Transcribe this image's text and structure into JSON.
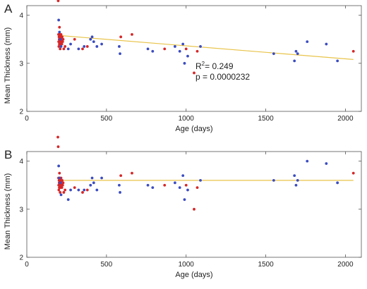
{
  "chart_data": [
    {
      "type": "scatter",
      "panel_label": "A",
      "xlabel": "Age (days)",
      "ylabel": "Mean Thickness (mm)",
      "xlim": [
        0,
        2100
      ],
      "ylim": [
        2,
        4.2
      ],
      "xticks": [
        0,
        500,
        1000,
        1500,
        2000
      ],
      "yticks": [
        2,
        3,
        4
      ],
      "grid": false,
      "legend": "none",
      "annotation": {
        "r2_label": "R",
        "r2_sup": "2",
        "r2_value": "= 0.249",
        "p_text": "p = 0.0000232"
      },
      "trendline": {
        "x": [
          200,
          2050
        ],
        "y": [
          3.58,
          3.08
        ],
        "color": "#e8c44a"
      },
      "series": [
        {
          "color": "#d62728",
          "x": [
            195,
            197,
            199,
            200,
            201,
            202,
            203,
            204,
            205,
            206,
            207,
            208,
            209,
            210,
            211,
            212,
            214,
            215,
            216,
            218,
            220,
            222,
            225,
            228,
            232,
            240,
            300,
            350,
            380,
            590,
            660,
            865,
            1000,
            1050,
            1070,
            2050
          ],
          "y": [
            4.45,
            4.3,
            3.6,
            3.45,
            3.35,
            3.55,
            3.5,
            3.4,
            3.75,
            3.5,
            3.6,
            3.45,
            3.3,
            3.55,
            3.4,
            3.5,
            3.55,
            3.6,
            3.45,
            3.5,
            3.4,
            3.55,
            3.45,
            3.5,
            3.3,
            3.35,
            3.5,
            3.3,
            3.35,
            3.55,
            3.6,
            3.3,
            3.3,
            2.8,
            3.25,
            3.25
          ]
        },
        {
          "color": "#3b4cc0",
          "x": [
            200,
            205,
            210,
            215,
            260,
            275,
            325,
            360,
            400,
            410,
            420,
            440,
            470,
            580,
            585,
            760,
            790,
            930,
            960,
            980,
            990,
            1010,
            1090,
            1550,
            1680,
            1690,
            1700,
            1760,
            1880,
            1950
          ],
          "y": [
            3.9,
            3.65,
            3.5,
            3.35,
            3.3,
            3.4,
            3.3,
            3.35,
            3.5,
            3.55,
            3.45,
            3.35,
            3.4,
            3.35,
            3.2,
            3.3,
            3.25,
            3.35,
            3.25,
            3.4,
            3.0,
            3.15,
            3.35,
            3.2,
            3.05,
            3.25,
            3.2,
            3.45,
            3.4,
            3.05
          ]
        }
      ]
    },
    {
      "type": "scatter",
      "panel_label": "B",
      "xlabel": "Age (days)",
      "ylabel": "Mean Thickness (mm)",
      "xlim": [
        0,
        2100
      ],
      "ylim": [
        2,
        4.2
      ],
      "xticks": [
        0,
        500,
        1000,
        1500,
        2000
      ],
      "yticks": [
        2,
        3,
        4
      ],
      "grid": false,
      "legend": "none",
      "trendline": {
        "x": [
          200,
          2050
        ],
        "y": [
          3.6,
          3.6
        ],
        "color": "#e8c44a"
      },
      "series": [
        {
          "color": "#d62728",
          "x": [
            195,
            197,
            199,
            200,
            201,
            202,
            203,
            204,
            205,
            206,
            207,
            208,
            209,
            210,
            211,
            212,
            214,
            215,
            216,
            218,
            220,
            222,
            225,
            228,
            232,
            240,
            300,
            350,
            380,
            590,
            660,
            865,
            1000,
            1050,
            1070,
            2050
          ],
          "y": [
            4.5,
            4.3,
            3.65,
            3.5,
            3.4,
            3.6,
            3.55,
            3.45,
            3.75,
            3.5,
            3.65,
            3.5,
            3.35,
            3.6,
            3.45,
            3.55,
            3.6,
            3.65,
            3.5,
            3.55,
            3.45,
            3.6,
            3.5,
            3.55,
            3.35,
            3.4,
            3.45,
            3.35,
            3.4,
            3.7,
            3.75,
            3.5,
            3.5,
            3.0,
            3.45,
            3.75
          ]
        },
        {
          "color": "#3b4cc0",
          "x": [
            200,
            205,
            210,
            215,
            260,
            275,
            325,
            360,
            400,
            410,
            420,
            440,
            470,
            580,
            585,
            760,
            790,
            930,
            960,
            980,
            990,
            1010,
            1090,
            1550,
            1680,
            1690,
            1700,
            1760,
            1880,
            1950
          ],
          "y": [
            3.9,
            3.65,
            3.55,
            3.3,
            3.2,
            3.4,
            3.4,
            3.4,
            3.5,
            3.65,
            3.55,
            3.4,
            3.65,
            3.5,
            3.35,
            3.5,
            3.45,
            3.55,
            3.45,
            3.7,
            3.2,
            3.4,
            3.6,
            3.6,
            3.7,
            3.5,
            3.6,
            4.0,
            3.95,
            3.55
          ]
        }
      ]
    }
  ]
}
